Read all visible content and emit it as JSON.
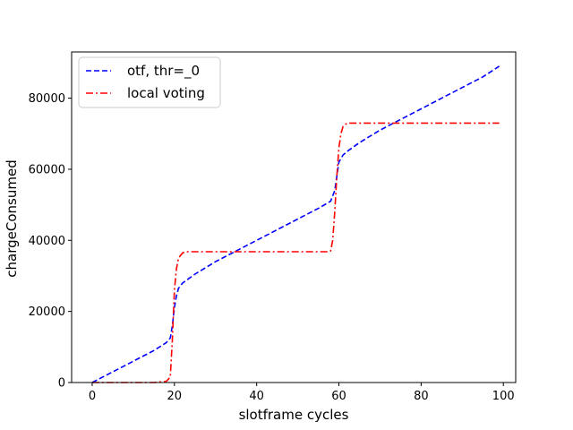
{
  "chart_data": {
    "type": "line",
    "xlabel": "slotframe cycles",
    "ylabel": "chargeConsumed",
    "xlim": [
      -5,
      103
    ],
    "ylim": [
      0,
      93000
    ],
    "xticks": [
      0,
      20,
      40,
      60,
      80,
      100
    ],
    "yticks": [
      0,
      20000,
      40000,
      60000,
      80000
    ],
    "grid": false,
    "legend_position": "top-left",
    "series": [
      {
        "name": "otf, thr=_0",
        "color": "#0000ff",
        "style": "dashed",
        "x": [
          0,
          5,
          10,
          15,
          18,
          19,
          19.5,
          20,
          20.5,
          21,
          22,
          25,
          30,
          35,
          40,
          45,
          50,
          55,
          58,
          59,
          59.5,
          60,
          61,
          62,
          65,
          70,
          75,
          80,
          85,
          90,
          95,
          99
        ],
        "y": [
          0,
          3000,
          6000,
          9000,
          11200,
          12500,
          16000,
          21000,
          24500,
          26500,
          28000,
          30500,
          34000,
          37000,
          40000,
          43000,
          46000,
          49000,
          51000,
          54000,
          58000,
          62000,
          64000,
          65000,
          67500,
          71000,
          74000,
          77000,
          80000,
          83000,
          86000,
          89000
        ]
      },
      {
        "name": "local voting",
        "color": "#ff0000",
        "style": "dashdot",
        "x": [
          0,
          5,
          10,
          15,
          18,
          19,
          19.5,
          20,
          20.5,
          21,
          22,
          23,
          25,
          30,
          40,
          50,
          57,
          58,
          58.5,
          59,
          59.5,
          60,
          60.5,
          61,
          62,
          65,
          70,
          80,
          90,
          99
        ],
        "y": [
          0,
          0,
          0,
          0,
          300,
          1500,
          12000,
          26000,
          32000,
          35000,
          36500,
          36800,
          36800,
          36800,
          36800,
          36800,
          36800,
          37000,
          40000,
          48000,
          58000,
          66000,
          70000,
          72000,
          73000,
          73000,
          73000,
          73000,
          73000,
          73000
        ]
      }
    ]
  }
}
